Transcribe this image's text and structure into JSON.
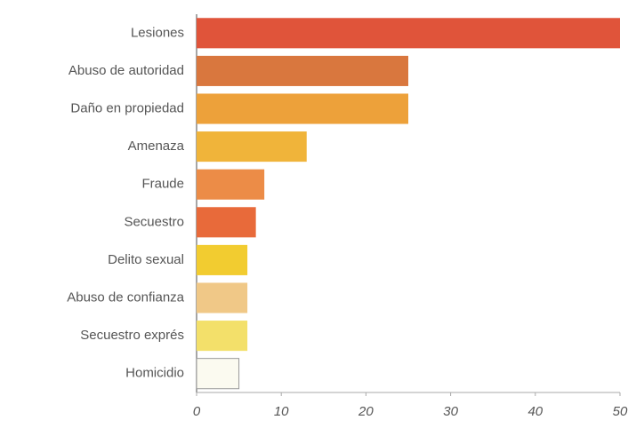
{
  "chart_data": {
    "type": "bar",
    "orientation": "horizontal",
    "categories": [
      "Lesiones",
      "Abuso de autoridad",
      "Daño en propiedad",
      "Amenaza",
      "Fraude",
      "Secuestro",
      "Delito sexual",
      "Abuso de confianza",
      "Secuestro exprés",
      "Homicidio"
    ],
    "values": [
      50,
      25,
      25,
      13,
      8,
      7,
      6,
      6,
      6,
      5
    ],
    "colors": [
      "#e0543a",
      "#d9773e",
      "#eda13a",
      "#f0b43a",
      "#ec8c47",
      "#e86a3a",
      "#f2cc30",
      "#f0c887",
      "#f3e06a",
      "#fbfaf0"
    ],
    "xlim": [
      0,
      50
    ],
    "xticks": [
      0,
      10,
      20,
      30,
      40,
      50
    ],
    "grid": false
  }
}
